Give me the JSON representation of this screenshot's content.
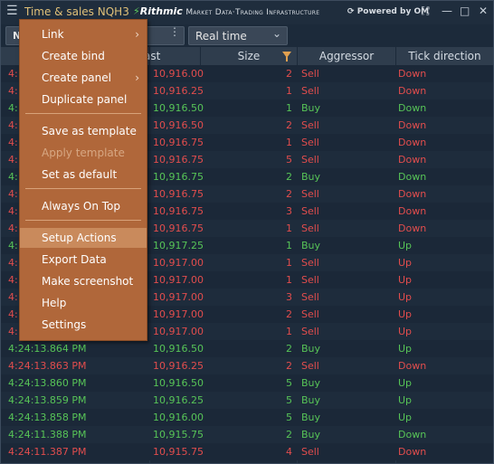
{
  "window": {
    "menu_icon": "hamburger-menu-icon",
    "title": "Time & sales NQH3",
    "logo": {
      "brand": "Rithmic",
      "tagline": "Market Data·Trading Infrastructure"
    },
    "powered": "Powered by OM",
    "controls": {
      "minimize": "—",
      "maximize": "□",
      "close": "✕",
      "fullscreen": "⛶"
    }
  },
  "toolbar": {
    "symbol_text": "N",
    "mode": "Real time"
  },
  "columns": {
    "time": "",
    "last": "ast",
    "size": "Size",
    "aggressor": "Aggressor",
    "tick": "Tick direction"
  },
  "rows": [
    {
      "time": "4:",
      "last": "10,916.00",
      "size": "2",
      "agg": "Sell",
      "tick": "Down"
    },
    {
      "time": "4:",
      "last": "10,916.25",
      "size": "1",
      "agg": "Sell",
      "tick": "Down"
    },
    {
      "time": "4:",
      "last": "10,916.50",
      "size": "1",
      "agg": "Buy",
      "tick": "Down"
    },
    {
      "time": "4:",
      "last": "10,916.50",
      "size": "2",
      "agg": "Sell",
      "tick": "Down"
    },
    {
      "time": "4:",
      "last": "10,916.75",
      "size": "1",
      "agg": "Sell",
      "tick": "Down"
    },
    {
      "time": "4:",
      "last": "10,916.75",
      "size": "5",
      "agg": "Sell",
      "tick": "Down"
    },
    {
      "time": "4:",
      "last": "10,916.75",
      "size": "2",
      "agg": "Buy",
      "tick": "Down"
    },
    {
      "time": "4:",
      "last": "10,916.75",
      "size": "2",
      "agg": "Sell",
      "tick": "Down"
    },
    {
      "time": "4:",
      "last": "10,916.75",
      "size": "3",
      "agg": "Sell",
      "tick": "Down"
    },
    {
      "time": "4:",
      "last": "10,916.75",
      "size": "1",
      "agg": "Sell",
      "tick": "Down"
    },
    {
      "time": "4:",
      "last": "10,917.25",
      "size": "1",
      "agg": "Buy",
      "tick": "Up"
    },
    {
      "time": "4:",
      "last": "10,917.00",
      "size": "1",
      "agg": "Sell",
      "tick": "Up"
    },
    {
      "time": "4:",
      "last": "10,917.00",
      "size": "1",
      "agg": "Sell",
      "tick": "Up"
    },
    {
      "time": "4:",
      "last": "10,917.00",
      "size": "3",
      "agg": "Sell",
      "tick": "Up"
    },
    {
      "time": "4:",
      "last": "10,917.00",
      "size": "2",
      "agg": "Sell",
      "tick": "Up"
    },
    {
      "time": "4:",
      "last": "10,917.00",
      "size": "1",
      "agg": "Sell",
      "tick": "Up"
    },
    {
      "time": "4:24:13.864 PM",
      "last": "10,916.50",
      "size": "2",
      "agg": "Buy",
      "tick": "Up"
    },
    {
      "time": "4:24:13.863 PM",
      "last": "10,916.25",
      "size": "2",
      "agg": "Sell",
      "tick": "Down"
    },
    {
      "time": "4:24:13.860 PM",
      "last": "10,916.50",
      "size": "5",
      "agg": "Buy",
      "tick": "Up"
    },
    {
      "time": "4:24:13.859 PM",
      "last": "10,916.25",
      "size": "5",
      "agg": "Buy",
      "tick": "Up"
    },
    {
      "time": "4:24:13.858 PM",
      "last": "10,916.00",
      "size": "5",
      "agg": "Buy",
      "tick": "Up"
    },
    {
      "time": "4:24:11.388 PM",
      "last": "10,915.75",
      "size": "2",
      "agg": "Buy",
      "tick": "Down"
    },
    {
      "time": "4:24:11.387 PM",
      "last": "10,915.75",
      "size": "4",
      "agg": "Sell",
      "tick": "Down"
    }
  ],
  "colors": {
    "sell": "#e24d4d",
    "buy": "#57c457",
    "menu_bg": "#b0673a",
    "title": "#e0c078"
  },
  "context_menu": {
    "items": [
      {
        "label": "Link",
        "submenu": true
      },
      {
        "label": "Create bind"
      },
      {
        "label": "Create panel",
        "submenu": true
      },
      {
        "label": "Duplicate panel"
      },
      {
        "label": "Save as template"
      },
      {
        "label": "Apply template",
        "disabled": true
      },
      {
        "label": "Set as default"
      },
      {
        "label": "Always On Top"
      },
      {
        "label": "Setup Actions",
        "highlighted": true
      },
      {
        "label": "Export Data"
      },
      {
        "label": "Make screenshot"
      },
      {
        "label": "Help"
      },
      {
        "label": "Settings"
      }
    ]
  }
}
